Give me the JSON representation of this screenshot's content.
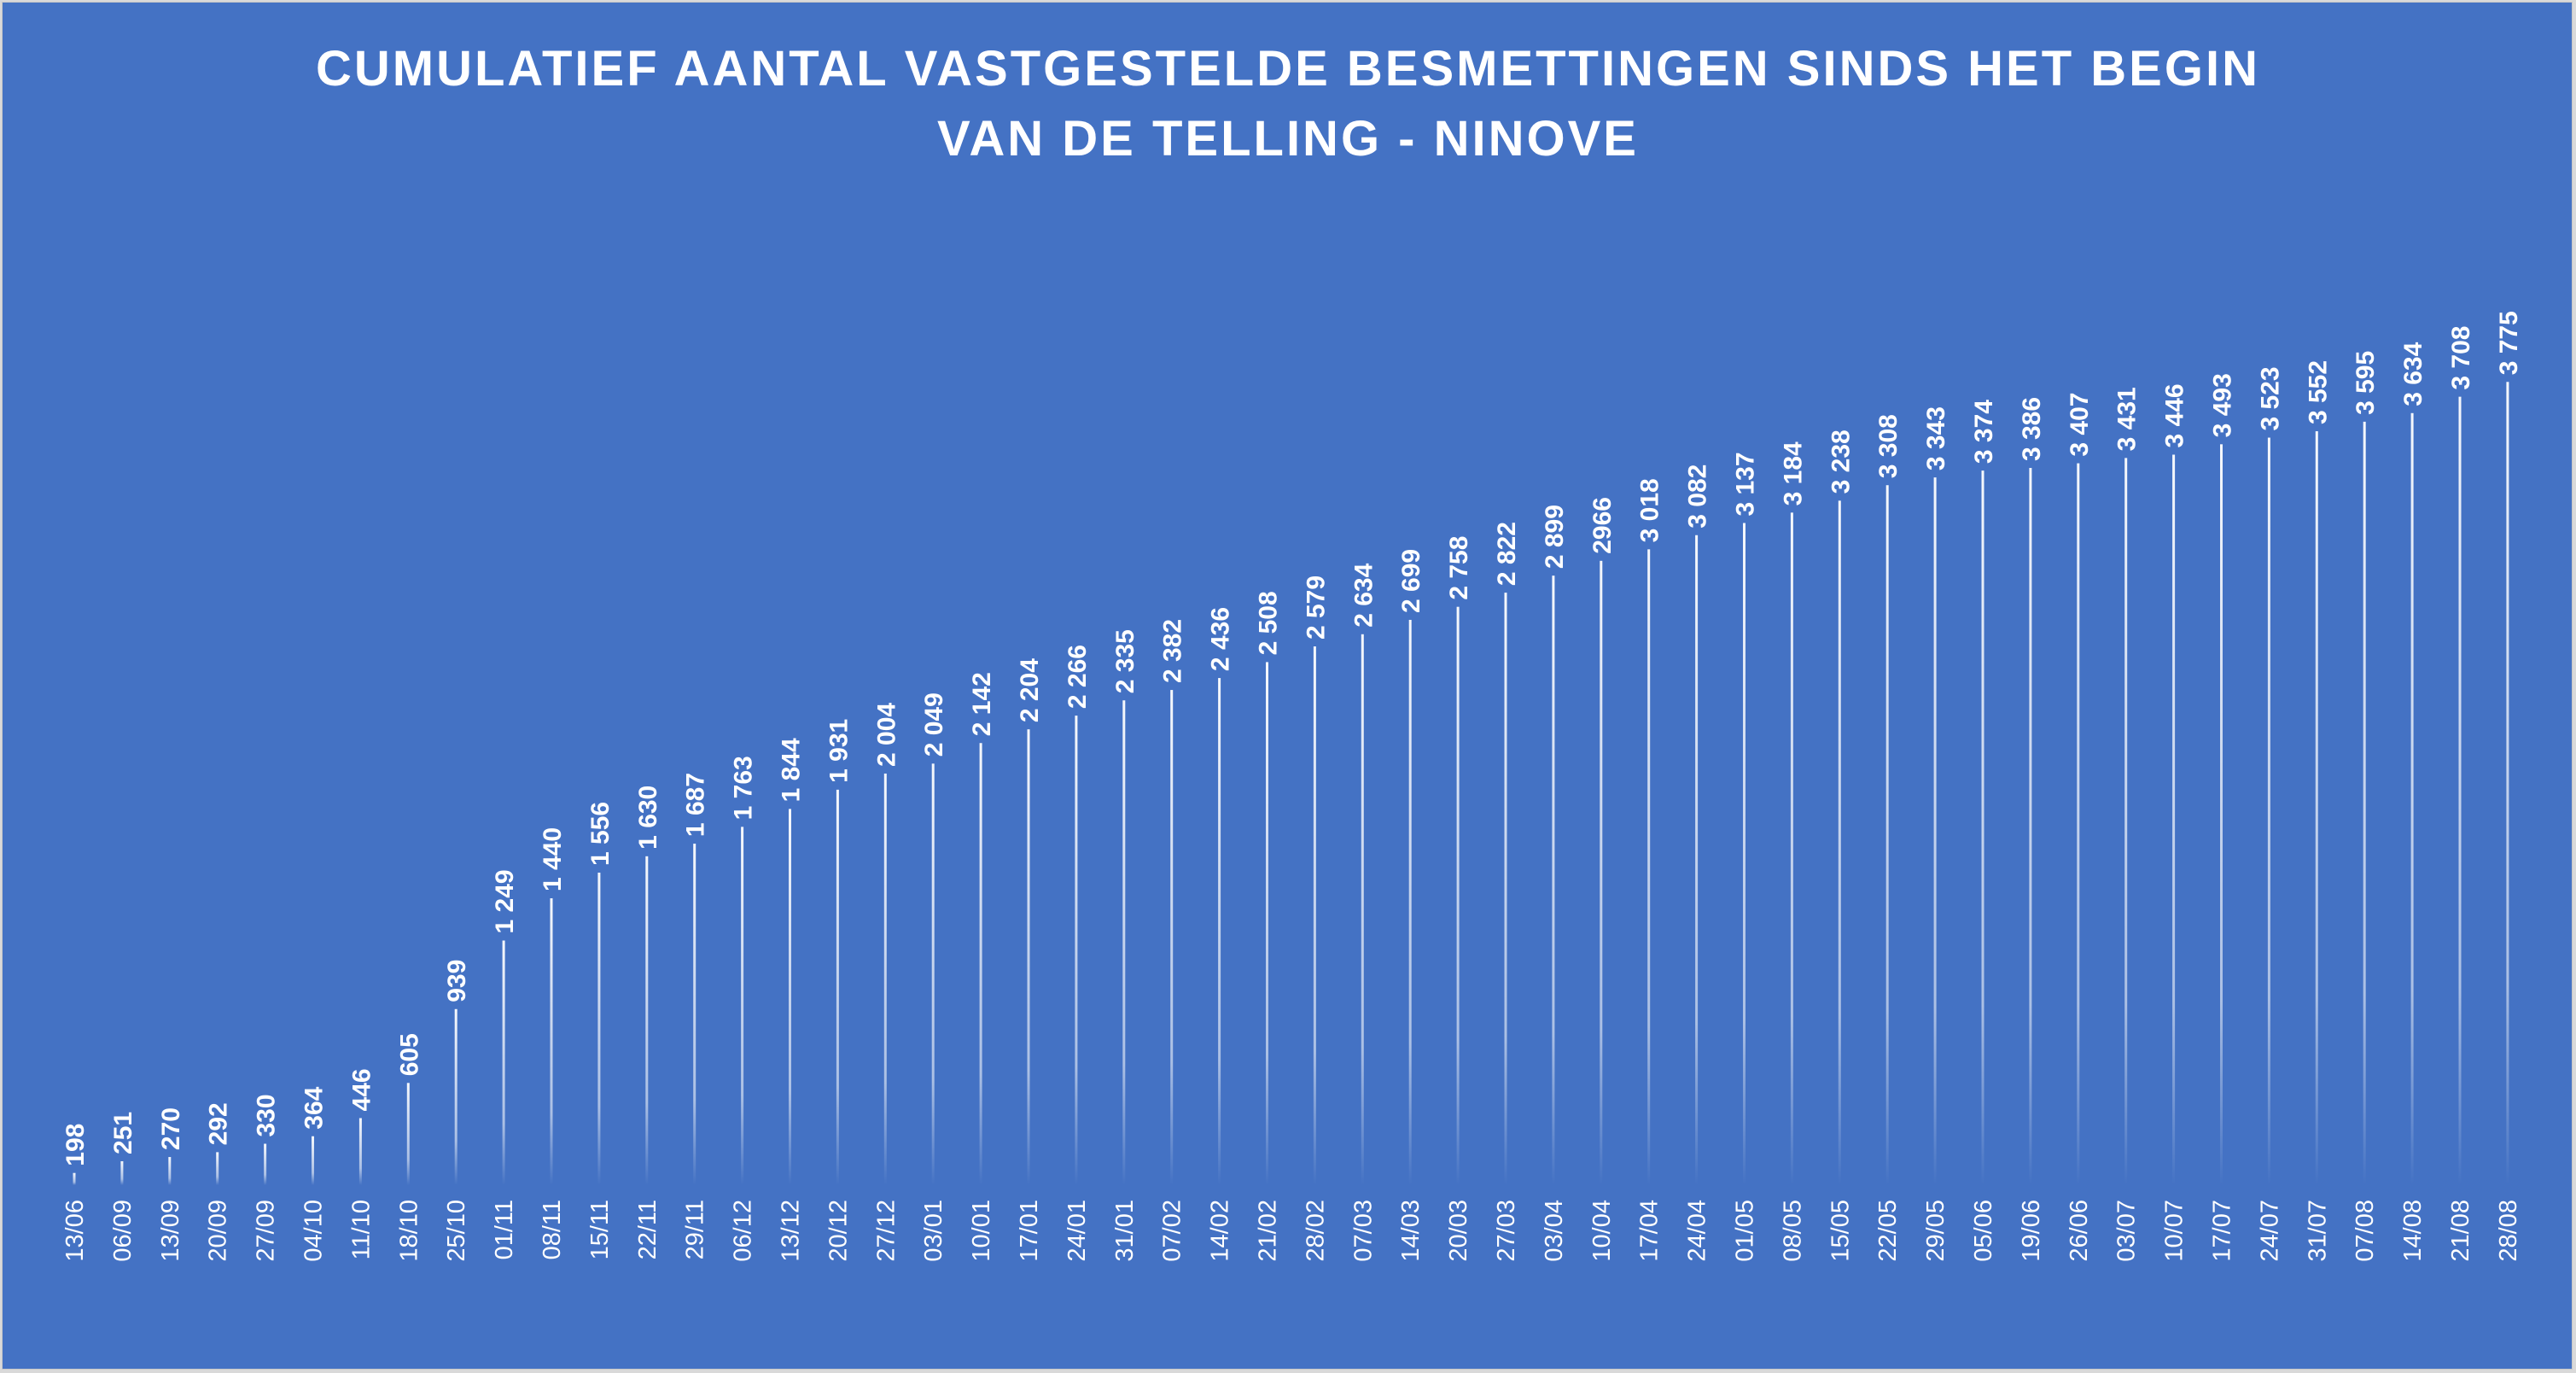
{
  "chart_data": {
    "type": "bar",
    "title_lines": [
      "CUMULATIEF AANTAL VASTGESTELDE BESMETTINGEN SINDS HET BEGIN",
      "VAN DE TELLING - NINOVE"
    ],
    "xlabel": "",
    "ylabel": "",
    "grid": false,
    "legend": "none",
    "colors": {
      "background": "#4472C4",
      "bar": "#FFFFFF",
      "text": "#FFFFFF"
    },
    "categories": [
      "13/06",
      "06/09",
      "13/09",
      "20/09",
      "27/09",
      "04/10",
      "11/10",
      "18/10",
      "25/10",
      "01/11",
      "08/11",
      "15/11",
      "22/11",
      "29/11",
      "06/12",
      "13/12",
      "20/12",
      "27/12",
      "03/01",
      "10/01",
      "17/01",
      "24/01",
      "31/01",
      "07/02",
      "14/02",
      "21/02",
      "28/02",
      "07/03",
      "14/03",
      "20/03",
      "27/03",
      "03/04",
      "10/04",
      "17/04",
      "24/04",
      "01/05",
      "08/05",
      "15/05",
      "22/05",
      "29/05",
      "05/06",
      "19/06",
      "26/06",
      "03/07",
      "10/07",
      "17/07",
      "24/07",
      "31/07",
      "07/08",
      "14/08",
      "21/08",
      "28/08"
    ],
    "values": [
      198,
      251,
      270,
      292,
      330,
      364,
      446,
      605,
      939,
      1249,
      1440,
      1556,
      1630,
      1687,
      1763,
      1844,
      1931,
      2004,
      2049,
      2142,
      2204,
      2266,
      2335,
      2382,
      2436,
      2508,
      2579,
      2634,
      2699,
      2758,
      2822,
      2899,
      2966,
      3018,
      3082,
      3137,
      3184,
      3238,
      3308,
      3343,
      3374,
      3386,
      3407,
      3431,
      3446,
      3493,
      3523,
      3552,
      3595,
      3634,
      3708,
      3775
    ],
    "value_labels": [
      "198",
      "251",
      "270",
      "292",
      "330",
      "364",
      "446",
      "605",
      "939",
      "1 249",
      "1 440",
      "1 556",
      "1 630",
      "1 687",
      "1 763",
      "1 844",
      "1 931",
      "2 004",
      "2 049",
      "2 142",
      "2 204",
      "2 266",
      "2 335",
      "2 382",
      "2 436",
      "2 508",
      "2 579",
      "2 634",
      "2 699",
      "2 758",
      "2 822",
      "2 899",
      "2966",
      "3 018",
      "3 082",
      "3 137",
      "3 184",
      "3 238",
      "3 308",
      "3 343",
      "3 374",
      "3 386",
      "3 407",
      "3 431",
      "3 446",
      "3 493",
      "3 523",
      "3 552",
      "3 595",
      "3 634",
      "3 708",
      "3 775"
    ]
  }
}
